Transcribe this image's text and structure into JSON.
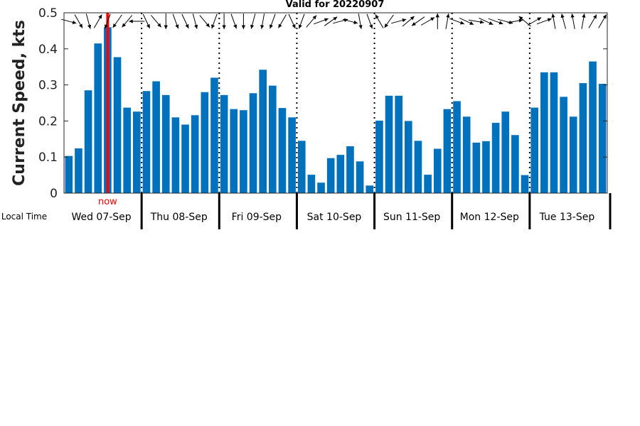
{
  "chart_data": {
    "type": "bar",
    "title": "Valid for 20220907",
    "ylabel": "Current Speed, kts",
    "xlabel": "Local Time",
    "ylim": [
      0,
      0.5
    ],
    "yticks": [
      "0",
      "0.1",
      "0.2",
      "0.3",
      "0.4",
      "0.5"
    ],
    "ytick_values": [
      0,
      0.1,
      0.2,
      0.3,
      0.4,
      0.5
    ],
    "bar_color": "#0072BD",
    "now_color": "#FF0000",
    "now_label": "now",
    "now_index": 4.5,
    "grid": false,
    "days": [
      "Wed 07-Sep",
      "Thu 08-Sep",
      "Fri 09-Sep",
      "Sat 10-Sep",
      "Sun 11-Sep",
      "Mon 12-Sep",
      "Tue 13-Sep"
    ],
    "bars_per_day": 8,
    "values": [
      0.103,
      0.124,
      0.285,
      0.415,
      0.46,
      0.377,
      0.237,
      0.226,
      0.283,
      0.31,
      0.272,
      0.21,
      0.19,
      0.216,
      0.28,
      0.32,
      0.272,
      0.233,
      0.23,
      0.277,
      0.342,
      0.298,
      0.236,
      0.21,
      0.145,
      0.051,
      0.029,
      0.097,
      0.106,
      0.13,
      0.088,
      0.021,
      0.201,
      0.27,
      0.27,
      0.2,
      0.145,
      0.051,
      0.123,
      0.233,
      0.255,
      0.212,
      0.14,
      0.144,
      0.195,
      0.226,
      0.161,
      0.05,
      0.237,
      0.335,
      0.335,
      0.267,
      0.212,
      0.305,
      0.365,
      0.303
    ],
    "arrow_directions_deg": [
      105,
      150,
      165,
      30,
      200,
      215,
      220,
      270,
      155,
      140,
      180,
      160,
      155,
      165,
      140,
      200,
      180,
      160,
      180,
      195,
      190,
      200,
      210,
      155,
      200,
      40,
      70,
      55,
      75,
      105,
      170,
      160,
      330,
      215,
      75,
      50,
      235,
      60,
      360,
      10,
      110,
      115,
      100,
      115,
      110,
      105,
      80,
      310,
      60,
      70,
      350,
      345,
      350,
      10,
      30,
      30
    ]
  }
}
